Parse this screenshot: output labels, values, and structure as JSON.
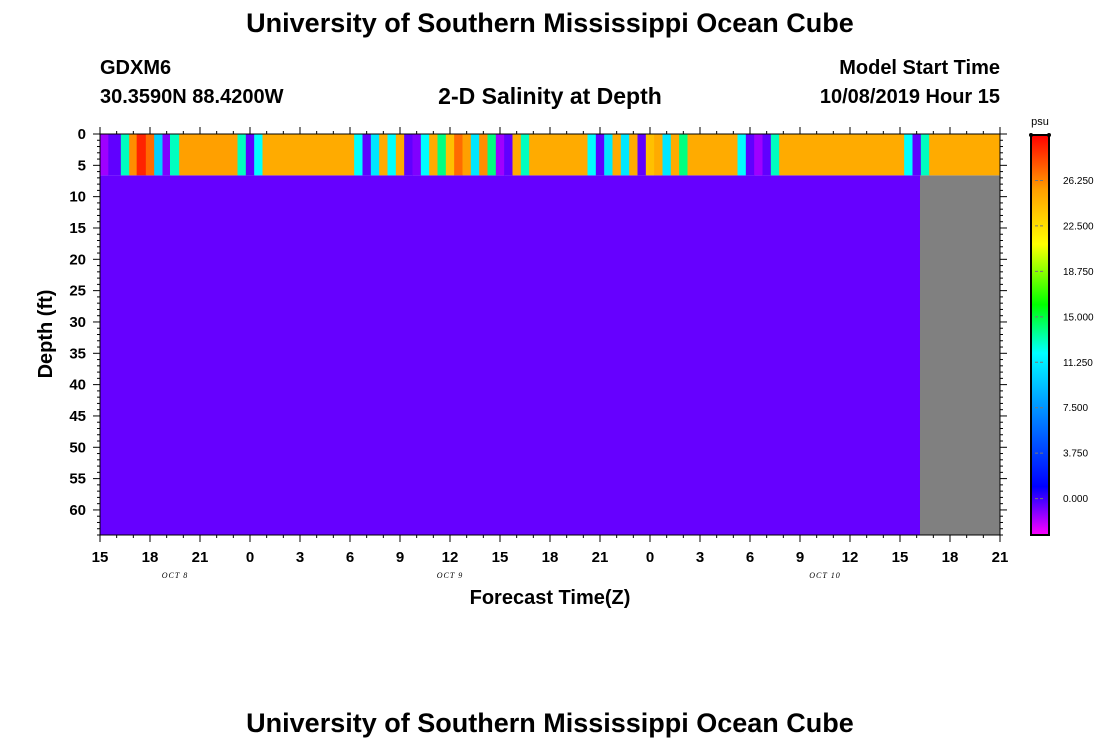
{
  "header": {
    "title": "University of Southern Mississippi Ocean Cube",
    "station": "GDXM6",
    "coords": "30.3590N 88.4200W",
    "chart_title": "2-D Salinity at Depth",
    "model_start_label": "Model Start Time",
    "model_start_value": "10/08/2019 Hour 15"
  },
  "footer": {
    "title": "University of Southern Mississippi Ocean Cube"
  },
  "chart_data": {
    "type": "heatmap",
    "title": "2-D Salinity at Depth",
    "xlabel": "Forecast Time(Z)",
    "ylabel": "Depth (ft)",
    "x_range_hours": [
      0,
      54
    ],
    "y_range_ft": [
      0,
      64
    ],
    "x_ticks": [
      "15",
      "18",
      "21",
      "0",
      "3",
      "6",
      "9",
      "12",
      "15",
      "18",
      "21",
      "0",
      "3",
      "6",
      "9",
      "12",
      "15",
      "18",
      "21"
    ],
    "y_ticks": [
      0,
      5,
      10,
      15,
      20,
      25,
      30,
      35,
      40,
      45,
      50,
      55,
      60
    ],
    "date_labels": [
      {
        "hour": 4.5,
        "label": "OCT 8"
      },
      {
        "hour": 21,
        "label": "OCT 9"
      },
      {
        "hour": 43.5,
        "label": "OCT 10"
      }
    ],
    "surface_layer_depth_ft": 6.6,
    "deep_layer_value": -0.5,
    "no_data_from_hour": 49.2,
    "surface_segments": [
      {
        "start": 0,
        "end": 0.5,
        "value": -1.5
      },
      {
        "start": 0.5,
        "end": 1.25,
        "value": -0.5
      },
      {
        "start": 1.25,
        "end": 1.75,
        "value": 13
      },
      {
        "start": 1.75,
        "end": 2.2,
        "value": 26
      },
      {
        "start": 2.2,
        "end": 2.75,
        "value": 29
      },
      {
        "start": 2.75,
        "end": 3.25,
        "value": 27
      },
      {
        "start": 3.25,
        "end": 3.75,
        "value": 10
      },
      {
        "start": 3.75,
        "end": 4.2,
        "value": -1
      },
      {
        "start": 4.2,
        "end": 4.75,
        "value": 13
      },
      {
        "start": 4.75,
        "end": 8.25,
        "value": 25.5
      },
      {
        "start": 8.25,
        "end": 8.75,
        "value": 13
      },
      {
        "start": 8.75,
        "end": 9.25,
        "value": -0.5
      },
      {
        "start": 9.25,
        "end": 9.75,
        "value": 12
      },
      {
        "start": 9.75,
        "end": 15.25,
        "value": 25
      },
      {
        "start": 15.25,
        "end": 15.75,
        "value": 12
      },
      {
        "start": 15.75,
        "end": 16.25,
        "value": -0.5
      },
      {
        "start": 16.25,
        "end": 16.75,
        "value": 11
      },
      {
        "start": 16.75,
        "end": 17.25,
        "value": 25
      },
      {
        "start": 17.25,
        "end": 17.75,
        "value": 12
      },
      {
        "start": 17.75,
        "end": 18.25,
        "value": 25
      },
      {
        "start": 18.25,
        "end": 18.75,
        "value": -0.5
      },
      {
        "start": 18.75,
        "end": 19.25,
        "value": -1
      },
      {
        "start": 19.25,
        "end": 19.75,
        "value": 12
      },
      {
        "start": 19.75,
        "end": 20.25,
        "value": 25
      },
      {
        "start": 20.25,
        "end": 20.75,
        "value": 14
      },
      {
        "start": 20.75,
        "end": 21.25,
        "value": 24
      },
      {
        "start": 21.25,
        "end": 21.75,
        "value": 27
      },
      {
        "start": 21.75,
        "end": 22.25,
        "value": 25.5
      },
      {
        "start": 22.25,
        "end": 22.75,
        "value": 11
      },
      {
        "start": 22.75,
        "end": 23.25,
        "value": 26
      },
      {
        "start": 23.25,
        "end": 23.75,
        "value": 14
      },
      {
        "start": 23.75,
        "end": 24.25,
        "value": -1.5
      },
      {
        "start": 24.25,
        "end": 24.75,
        "value": -0.5
      },
      {
        "start": 24.75,
        "end": 25.25,
        "value": 25
      },
      {
        "start": 25.25,
        "end": 25.75,
        "value": 13
      },
      {
        "start": 25.75,
        "end": 29.25,
        "value": 25
      },
      {
        "start": 29.25,
        "end": 29.75,
        "value": 12
      },
      {
        "start": 29.75,
        "end": 30.25,
        "value": -0.5
      },
      {
        "start": 30.25,
        "end": 30.75,
        "value": 11
      },
      {
        "start": 30.75,
        "end": 31.25,
        "value": 25
      },
      {
        "start": 31.25,
        "end": 31.75,
        "value": 11
      },
      {
        "start": 31.75,
        "end": 32.25,
        "value": 25
      },
      {
        "start": 32.25,
        "end": 32.75,
        "value": -0.5
      },
      {
        "start": 32.75,
        "end": 33.25,
        "value": 24
      },
      {
        "start": 33.25,
        "end": 33.75,
        "value": 25
      },
      {
        "start": 33.75,
        "end": 34.25,
        "value": 11
      },
      {
        "start": 34.25,
        "end": 34.75,
        "value": 25
      },
      {
        "start": 34.75,
        "end": 35.25,
        "value": 14
      },
      {
        "start": 35.25,
        "end": 38.25,
        "value": 25
      },
      {
        "start": 38.25,
        "end": 38.75,
        "value": 12
      },
      {
        "start": 38.75,
        "end": 39.25,
        "value": -0.5
      },
      {
        "start": 39.25,
        "end": 39.75,
        "value": -1.5
      },
      {
        "start": 39.75,
        "end": 40.25,
        "value": -0.5
      },
      {
        "start": 40.25,
        "end": 40.75,
        "value": 13
      },
      {
        "start": 40.75,
        "end": 48.25,
        "value": 25
      },
      {
        "start": 48.25,
        "end": 48.75,
        "value": 12
      },
      {
        "start": 48.75,
        "end": 49.25,
        "value": -0.5
      },
      {
        "start": 49.25,
        "end": 49.75,
        "value": 13
      },
      {
        "start": 49.75,
        "end": 54,
        "value": 25
      }
    ],
    "colorbar": {
      "unit": "psu",
      "range": [
        -3,
        30
      ],
      "ticks": [
        "26.250",
        "22.500",
        "18.750",
        "15.000",
        "11.250",
        "7.500",
        "3.750",
        "0.000"
      ],
      "tick_values": [
        26.25,
        22.5,
        18.75,
        15,
        11.25,
        7.5,
        3.75,
        0
      ],
      "stops": [
        {
          "value": -3,
          "color": "#ff00ff"
        },
        {
          "value": 1,
          "color": "#0000ff"
        },
        {
          "value": 8,
          "color": "#00a0ff"
        },
        {
          "value": 12,
          "color": "#00ffff"
        },
        {
          "value": 16,
          "color": "#00ff00"
        },
        {
          "value": 21,
          "color": "#ffff00"
        },
        {
          "value": 25.5,
          "color": "#ffa000"
        },
        {
          "value": 30,
          "color": "#ff0000"
        }
      ]
    },
    "colors": {
      "deep_water": "#6600ff",
      "no_data": "#808080"
    }
  }
}
